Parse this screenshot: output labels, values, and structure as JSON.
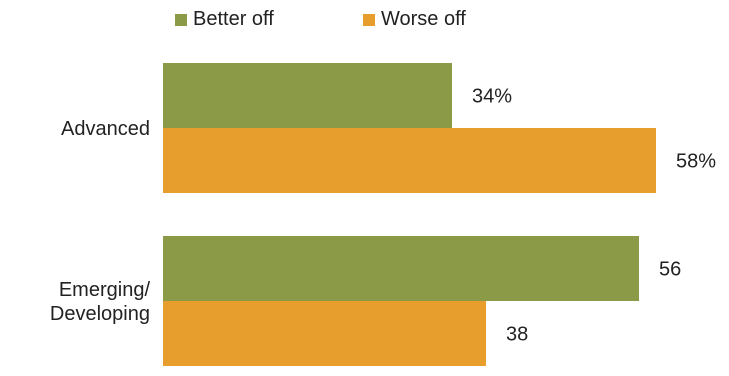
{
  "chart_data": {
    "type": "bar",
    "orientation": "horizontal",
    "categories": [
      "Advanced",
      "Emerging/\nDeveloping"
    ],
    "series": [
      {
        "name": "Better off",
        "values": [
          34,
          56
        ],
        "color": "#8b9a47",
        "labels": [
          "34%",
          "56"
        ]
      },
      {
        "name": "Worse off",
        "values": [
          58,
          38
        ],
        "color": "#e89e2c",
        "labels": [
          "58%",
          "38"
        ]
      }
    ],
    "legend_position": "top",
    "grid": false,
    "xlim": [
      0,
      100
    ]
  }
}
